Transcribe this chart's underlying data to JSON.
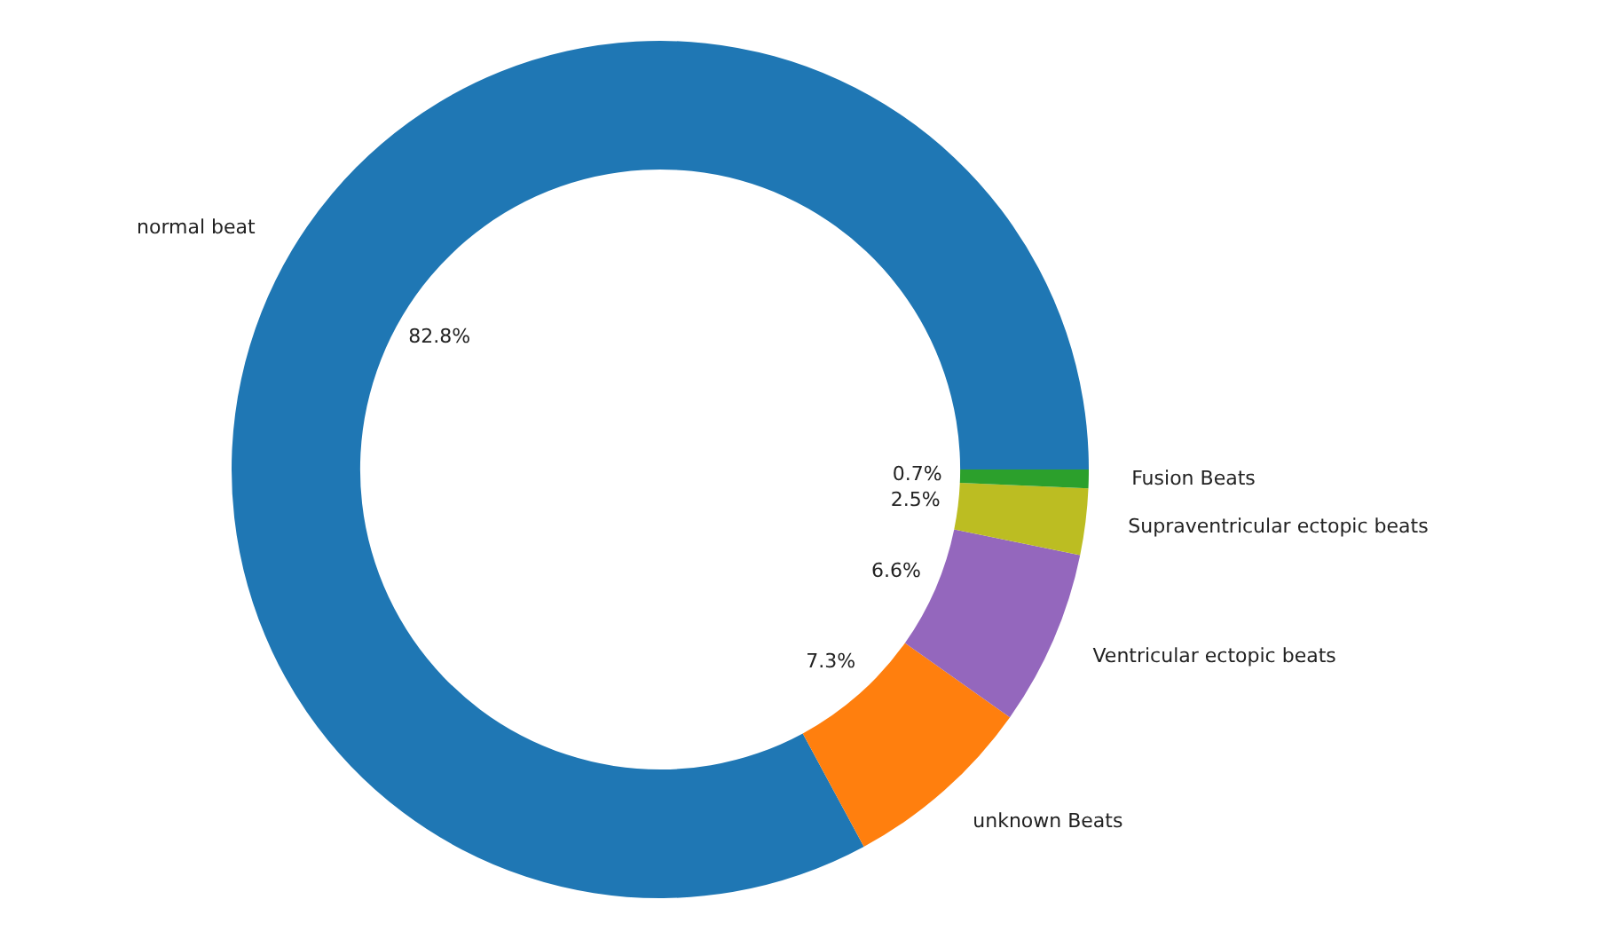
{
  "chart_data": {
    "type": "donut",
    "categories": [
      "normal beat",
      "unknown Beats",
      "Ventricular ectopic beats",
      "Supraventricular ectopic beats",
      "Fusion Beats"
    ],
    "values": [
      82.8,
      7.3,
      6.6,
      2.5,
      0.7
    ],
    "value_labels": [
      "82.8%",
      "7.3%",
      "6.6%",
      "2.5%",
      "0.7%"
    ],
    "colors": [
      "#1f77b4",
      "#ff7f0e",
      "#9467bd",
      "#bcbd22",
      "#2ca02c"
    ],
    "legend": false
  }
}
